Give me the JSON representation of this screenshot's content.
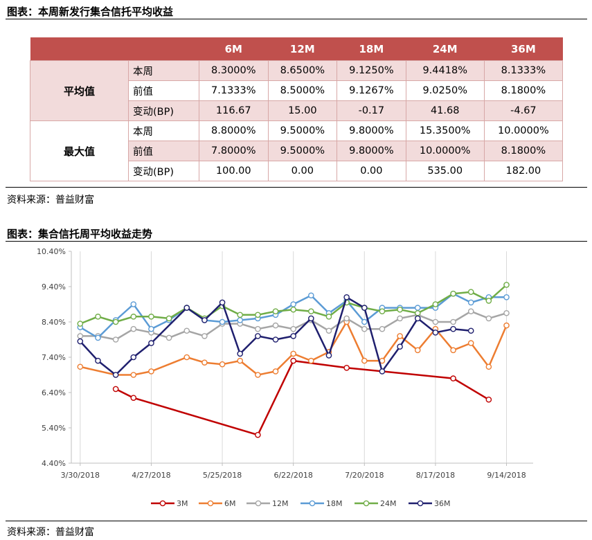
{
  "table_section": {
    "title": "图表：本周新发行集合信托平均收益",
    "source": "资料来源：普益财富",
    "header": [
      "",
      "",
      "6M",
      "12M",
      "18M",
      "24M",
      "36M"
    ],
    "groups": [
      {
        "name": "平均值",
        "rows": [
          {
            "label": "本周",
            "values": [
              "8.3000%",
              "8.6500%",
              "9.1250%",
              "9.4418%",
              "8.1333%"
            ]
          },
          {
            "label": "前值",
            "values": [
              "7.1333%",
              "8.5000%",
              "9.1267%",
              "9.0250%",
              "8.1800%"
            ]
          },
          {
            "label": "变动(BP)",
            "values": [
              "116.67",
              "15.00",
              "-0.17",
              "41.68",
              "-4.67"
            ]
          }
        ]
      },
      {
        "name": "最大值",
        "rows": [
          {
            "label": "本周",
            "values": [
              "8.8000%",
              "9.5000%",
              "9.8000%",
              "15.3500%",
              "10.0000%"
            ]
          },
          {
            "label": "前值",
            "values": [
              "7.8000%",
              "9.5000%",
              "9.8000%",
              "10.0000%",
              "8.1800%"
            ]
          },
          {
            "label": "变动(BP)",
            "values": [
              "100.00",
              "0.00",
              "0.00",
              "535.00",
              "182.00"
            ]
          }
        ]
      }
    ]
  },
  "chart_section": {
    "title": "图表：集合信托周平均收益走势",
    "source": "资料来源：普益财富"
  },
  "chart_data": {
    "type": "line",
    "x_start": "3/30/2018",
    "x_step_days": 7,
    "x_ticks": [
      "3/30/2018",
      "4/27/2018",
      "5/25/2018",
      "6/22/2018",
      "7/20/2018",
      "8/17/2018",
      "9/14/2018"
    ],
    "y_ticks": [
      "4.40%",
      "5.40%",
      "6.40%",
      "7.40%",
      "8.40%",
      "9.40%",
      "10.40%"
    ],
    "ylim": [
      4.4,
      10.4
    ],
    "grid": "vertical",
    "legend": "bottom",
    "series": [
      {
        "name": "3M",
        "color": "#c00000",
        "values": [
          null,
          null,
          6.5,
          6.25,
          null,
          null,
          null,
          null,
          null,
          null,
          5.2,
          null,
          7.3,
          null,
          null,
          7.1,
          null,
          null,
          null,
          null,
          null,
          6.8,
          null,
          6.2,
          null,
          null
        ]
      },
      {
        "name": "6M",
        "color": "#ed7d31",
        "values": [
          7.13,
          null,
          6.9,
          6.9,
          7.0,
          null,
          7.4,
          7.25,
          7.2,
          7.3,
          6.9,
          7.0,
          7.5,
          7.3,
          7.55,
          8.4,
          7.3,
          7.3,
          8.0,
          7.6,
          8.2,
          7.6,
          7.8,
          7.13,
          8.3,
          null
        ]
      },
      {
        "name": "12M",
        "color": "#a5a5a5",
        "values": [
          8.0,
          8.0,
          7.9,
          8.2,
          8.1,
          7.95,
          8.15,
          8.0,
          8.35,
          8.35,
          8.2,
          8.3,
          8.2,
          8.45,
          8.15,
          8.5,
          8.2,
          8.2,
          8.5,
          8.6,
          8.4,
          8.4,
          8.7,
          8.5,
          8.65,
          null
        ]
      },
      {
        "name": "18M",
        "color": "#5b9bd5",
        "values": [
          8.25,
          7.95,
          8.45,
          8.9,
          8.2,
          8.45,
          8.8,
          8.45,
          8.4,
          8.45,
          8.5,
          8.6,
          8.9,
          9.15,
          8.65,
          9.0,
          8.4,
          8.8,
          8.8,
          8.8,
          8.8,
          9.2,
          8.95,
          9.1,
          9.1,
          null
        ]
      },
      {
        "name": "24M",
        "color": "#70ad47",
        "values": [
          8.35,
          8.55,
          8.4,
          8.55,
          8.55,
          8.5,
          8.8,
          8.5,
          8.85,
          8.6,
          8.6,
          8.7,
          8.75,
          8.7,
          8.55,
          8.95,
          8.8,
          8.7,
          8.75,
          8.65,
          8.9,
          9.2,
          9.25,
          9.0,
          9.45,
          null
        ]
      },
      {
        "name": "36M",
        "color": "#1f1f6e",
        "values": [
          7.85,
          7.3,
          6.9,
          7.4,
          7.8,
          null,
          8.8,
          8.45,
          8.95,
          7.5,
          8.0,
          7.9,
          8.0,
          8.5,
          7.45,
          9.1,
          8.8,
          7.0,
          7.7,
          8.5,
          8.1,
          8.2,
          8.15,
          null,
          null,
          null
        ]
      }
    ]
  }
}
